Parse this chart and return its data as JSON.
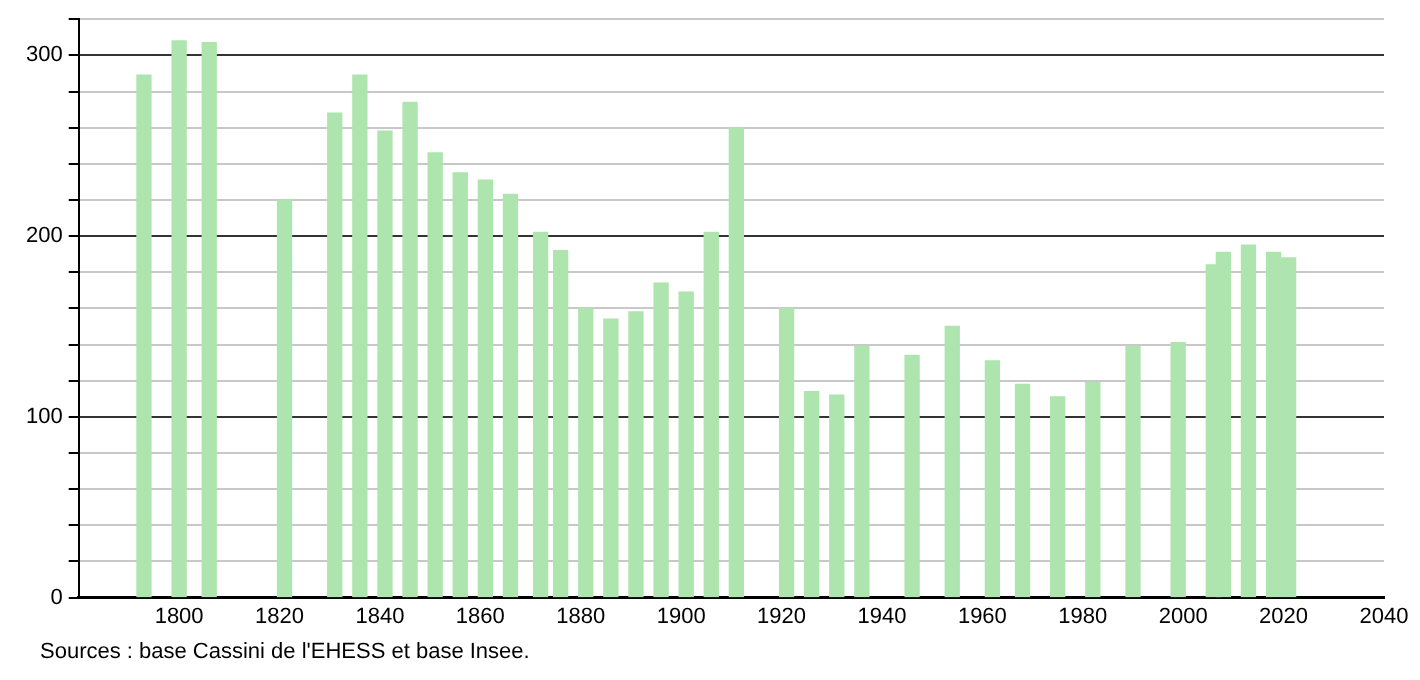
{
  "chart_data": {
    "type": "bar",
    "x": [
      1793,
      1800,
      1806,
      1821,
      1831,
      1836,
      1841,
      1846,
      1851,
      1856,
      1861,
      1866,
      1872,
      1876,
      1881,
      1886,
      1891,
      1896,
      1901,
      1906,
      1911,
      1921,
      1926,
      1931,
      1936,
      1946,
      1954,
      1962,
      1968,
      1975,
      1982,
      1990,
      1999,
      2006,
      2008,
      2013,
      2018,
      2021
    ],
    "values": [
      289,
      308,
      307,
      220,
      268,
      289,
      258,
      274,
      246,
      235,
      231,
      223,
      202,
      192,
      160,
      154,
      158,
      174,
      169,
      202,
      260,
      160,
      114,
      112,
      139,
      134,
      150,
      131,
      118,
      111,
      119,
      139,
      141,
      184,
      191,
      195,
      191,
      188
    ],
    "color": "#aee5ae",
    "xlim": [
      1780,
      2040
    ],
    "xticks": [
      1800,
      1820,
      1840,
      1860,
      1880,
      1900,
      1920,
      1940,
      1960,
      1980,
      2000,
      2020,
      2040
    ],
    "ylim": [
      0,
      320
    ],
    "yticks": [
      0,
      {
        "value": 20,
        "label": null
      },
      {
        "value": 40,
        "label": null
      },
      {
        "value": 60,
        "label": null
      },
      {
        "value": 80,
        "label": null
      },
      100,
      {
        "value": 120,
        "label": null
      },
      {
        "value": 140,
        "label": null
      },
      {
        "value": 160,
        "label": null
      },
      {
        "value": 180,
        "label": null
      },
      200,
      {
        "value": 220,
        "label": null
      },
      {
        "value": 240,
        "label": null
      },
      {
        "value": 260,
        "label": null
      },
      {
        "value": 280,
        "label": null
      },
      300,
      {
        "value": 320,
        "label": null
      }
    ],
    "grid": "y",
    "annotations": [
      "Sources : base Cassini de l'EHESS et base Insee."
    ]
  }
}
